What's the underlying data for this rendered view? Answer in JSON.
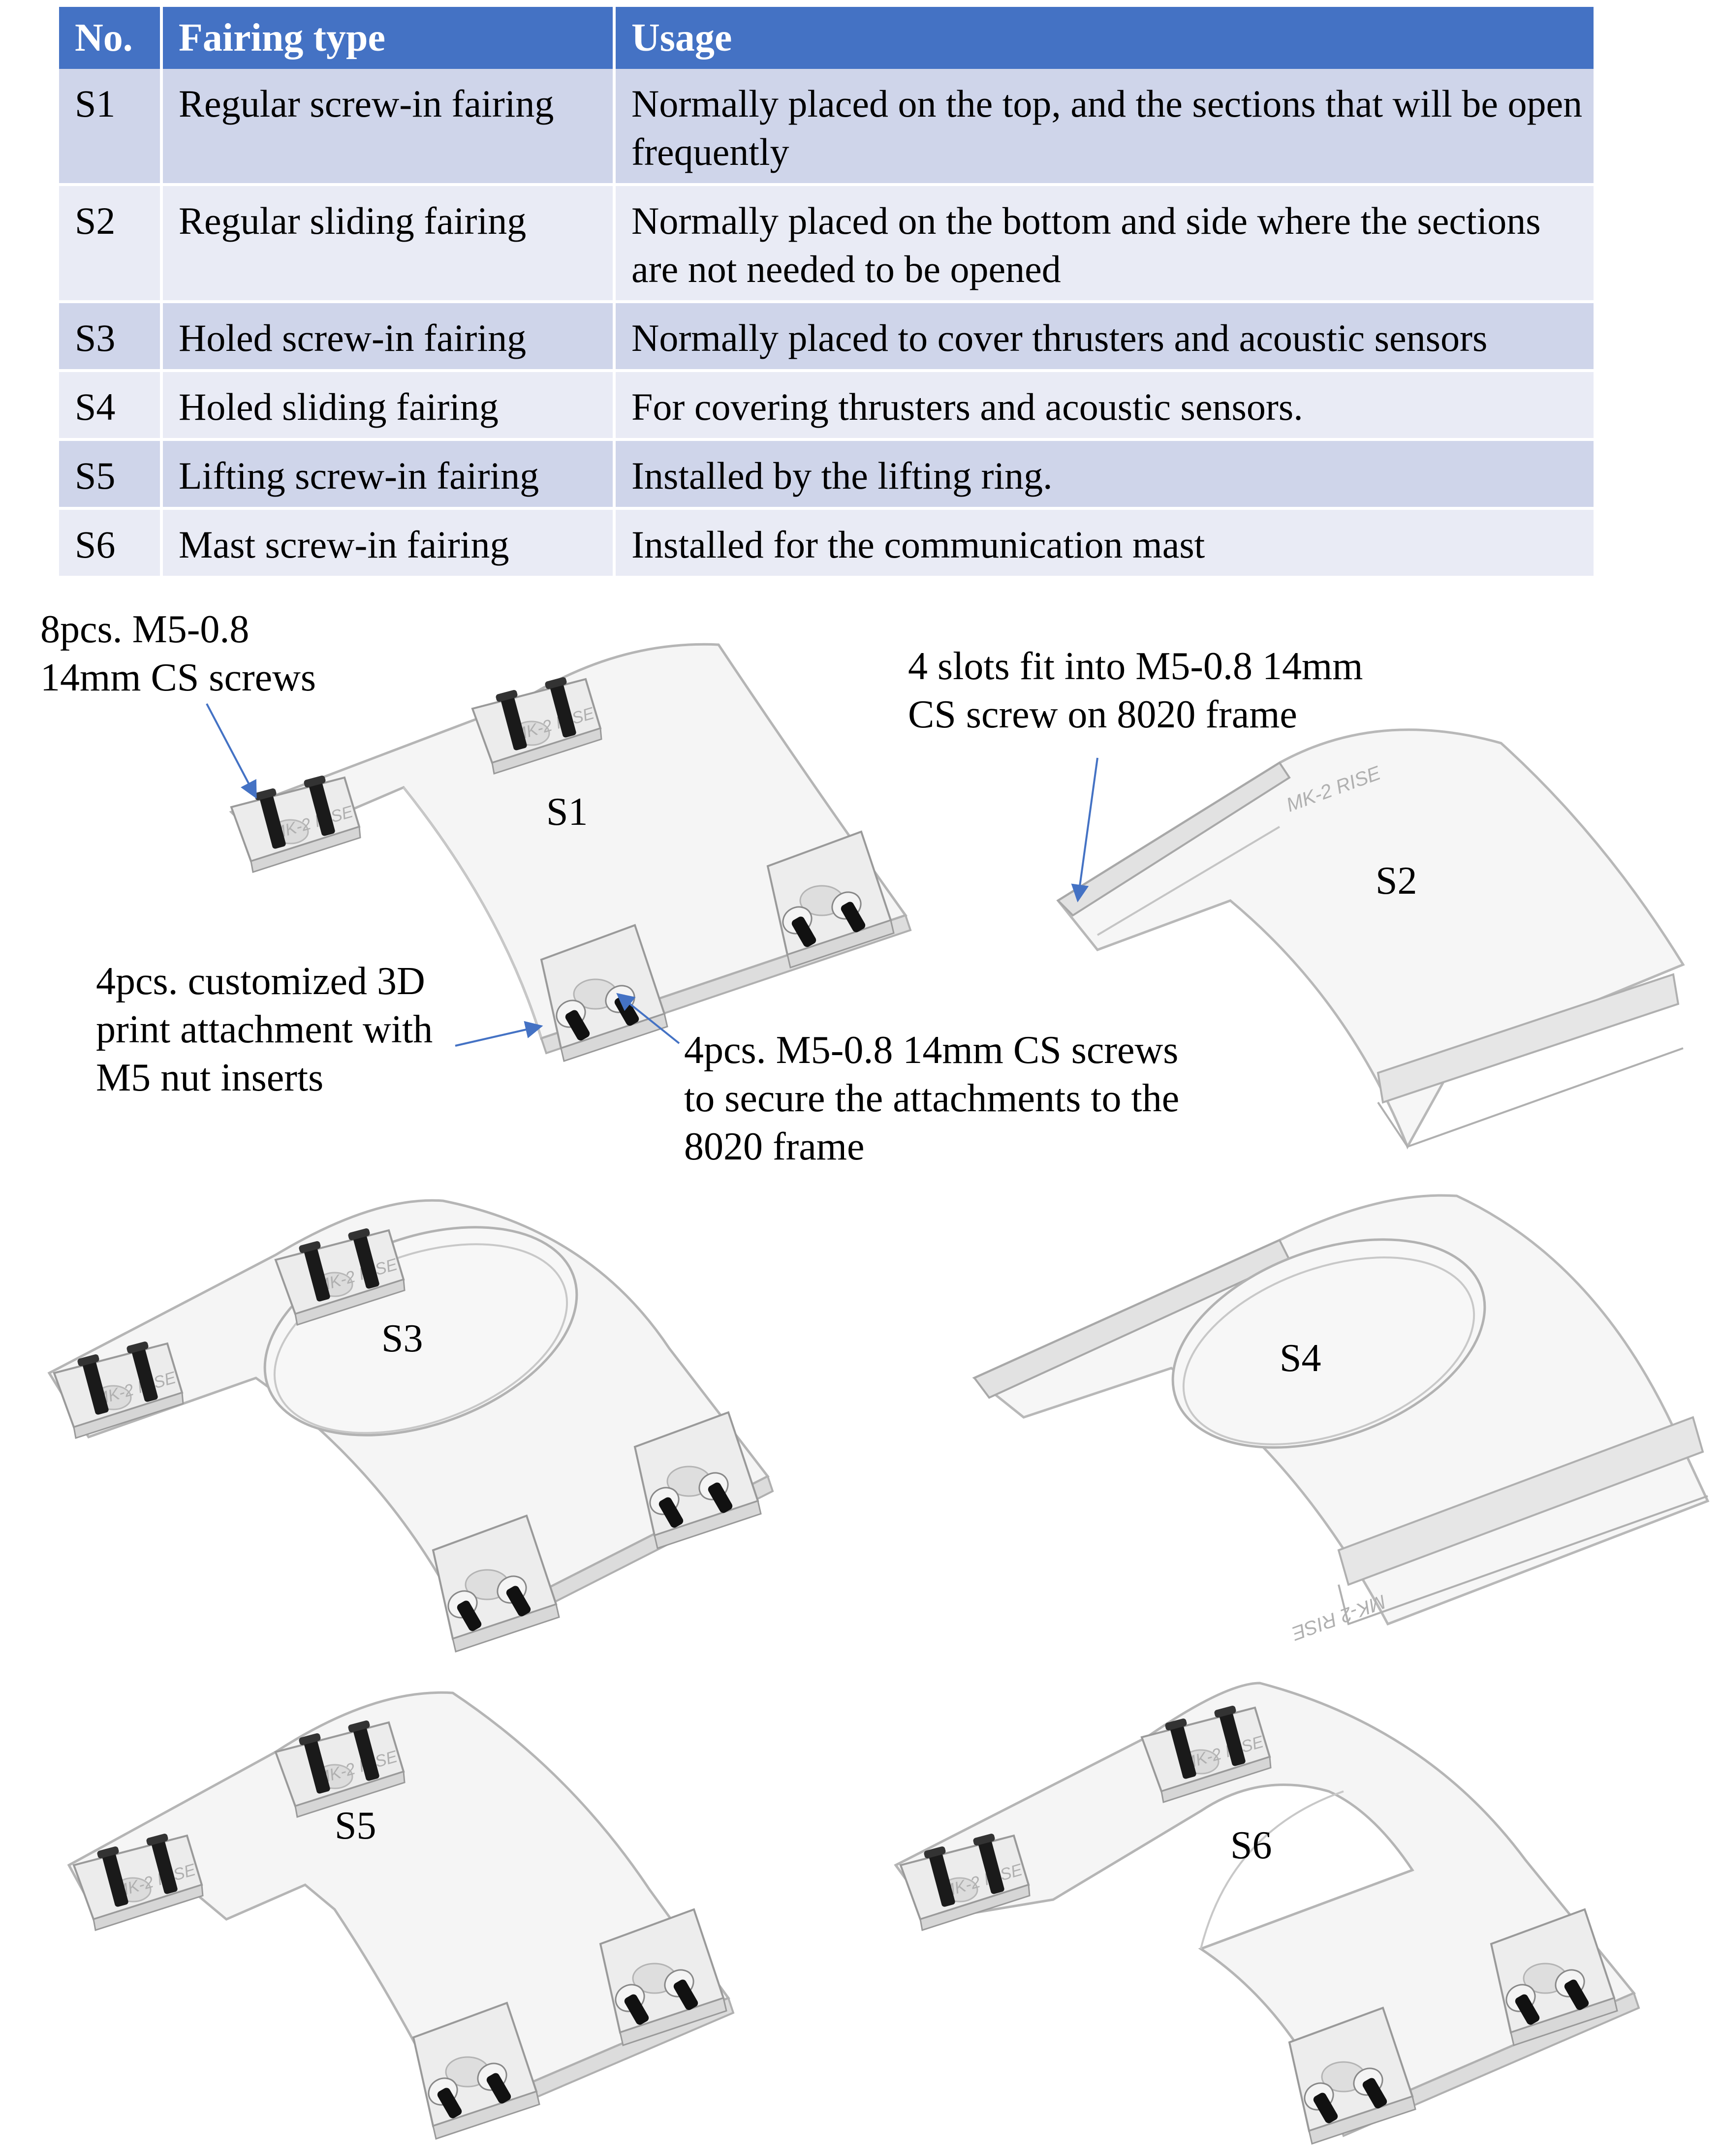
{
  "table": {
    "headers": [
      "No.",
      "Fairing type",
      "Usage"
    ],
    "rows": [
      {
        "no": "S1",
        "type": "Regular screw-in fairing",
        "usage": "Normally placed on the top, and the sections that will be open frequently"
      },
      {
        "no": "S2",
        "type": "Regular sliding fairing",
        "usage": "Normally placed on the bottom and side where the sections are not needed to be opened"
      },
      {
        "no": "S3",
        "type": "Holed screw-in fairing",
        "usage": "Normally placed to cover thrusters and acoustic sensors"
      },
      {
        "no": "S4",
        "type": "Holed sliding fairing",
        "usage": "For covering thrusters and acoustic sensors."
      },
      {
        "no": "S5",
        "type": "Lifting screw-in fairing",
        "usage": "Installed by the lifting ring."
      },
      {
        "no": "S6",
        "type": "Mast screw-in fairing",
        "usage": "Installed for the communication mast"
      }
    ],
    "colors": {
      "header_bg": "#4472C4",
      "row_odd": "#CFD5EA",
      "row_even": "#E9EBF5"
    }
  },
  "callouts": {
    "screws_8": [
      "8pcs. M5-0.8",
      "14mm CS screws"
    ],
    "slots_4": [
      "4 slots fit into M5-0.8 14mm",
      "CS screw on 8020 frame"
    ],
    "attachment_4": [
      "4pcs. customized 3D",
      "print attachment with",
      "M5 nut inserts"
    ],
    "screws_4": [
      "4pcs. M5-0.8 14mm CS screws",
      "to secure the attachments to the",
      "8020 frame"
    ]
  },
  "parts": {
    "s1": "S1",
    "s2": "S2",
    "s3": "S3",
    "s4": "S4",
    "s5": "S5",
    "s6": "S6"
  },
  "brand_mark": "MK-2 RISE",
  "arrow_color": "#4472C4"
}
